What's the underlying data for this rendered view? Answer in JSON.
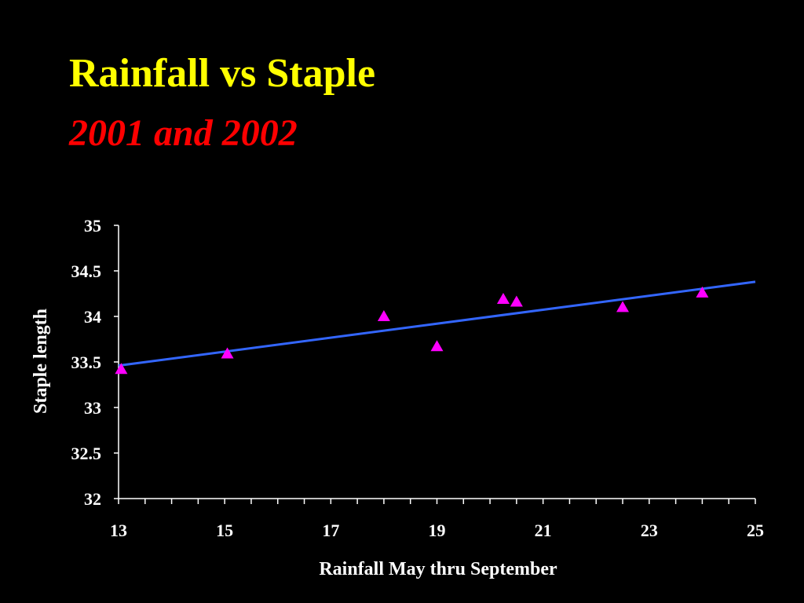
{
  "slide": {
    "title": "Rainfall vs Staple",
    "subtitle": "2001 and 2002"
  },
  "colors": {
    "background": "#000000",
    "title": "#ffff00",
    "subtitle": "#ff0000",
    "points": "#ff00ff",
    "trendline": "#3366ff",
    "axes": "#ffffff"
  },
  "chart_data": {
    "type": "scatter",
    "xlabel": "Rainfall May thru September",
    "ylabel": "Staple length",
    "xlim": [
      13,
      25
    ],
    "ylim": [
      32,
      35
    ],
    "x_ticks": [
      "13",
      "15",
      "17",
      "19",
      "21",
      "23",
      "25"
    ],
    "y_ticks": [
      "32",
      "32.5",
      "33",
      "33.5",
      "34",
      "34.5",
      "35"
    ],
    "grid": false,
    "marker": "triangle",
    "points": [
      {
        "x": 13.05,
        "y": 33.42
      },
      {
        "x": 15.05,
        "y": 33.59
      },
      {
        "x": 18.0,
        "y": 34.0
      },
      {
        "x": 19.0,
        "y": 33.67
      },
      {
        "x": 20.25,
        "y": 34.19
      },
      {
        "x": 20.5,
        "y": 34.16
      },
      {
        "x": 22.5,
        "y": 34.1
      },
      {
        "x": 24.0,
        "y": 34.26
      }
    ],
    "trendline": {
      "x": [
        13,
        25
      ],
      "y": [
        33.46,
        34.38
      ]
    }
  }
}
